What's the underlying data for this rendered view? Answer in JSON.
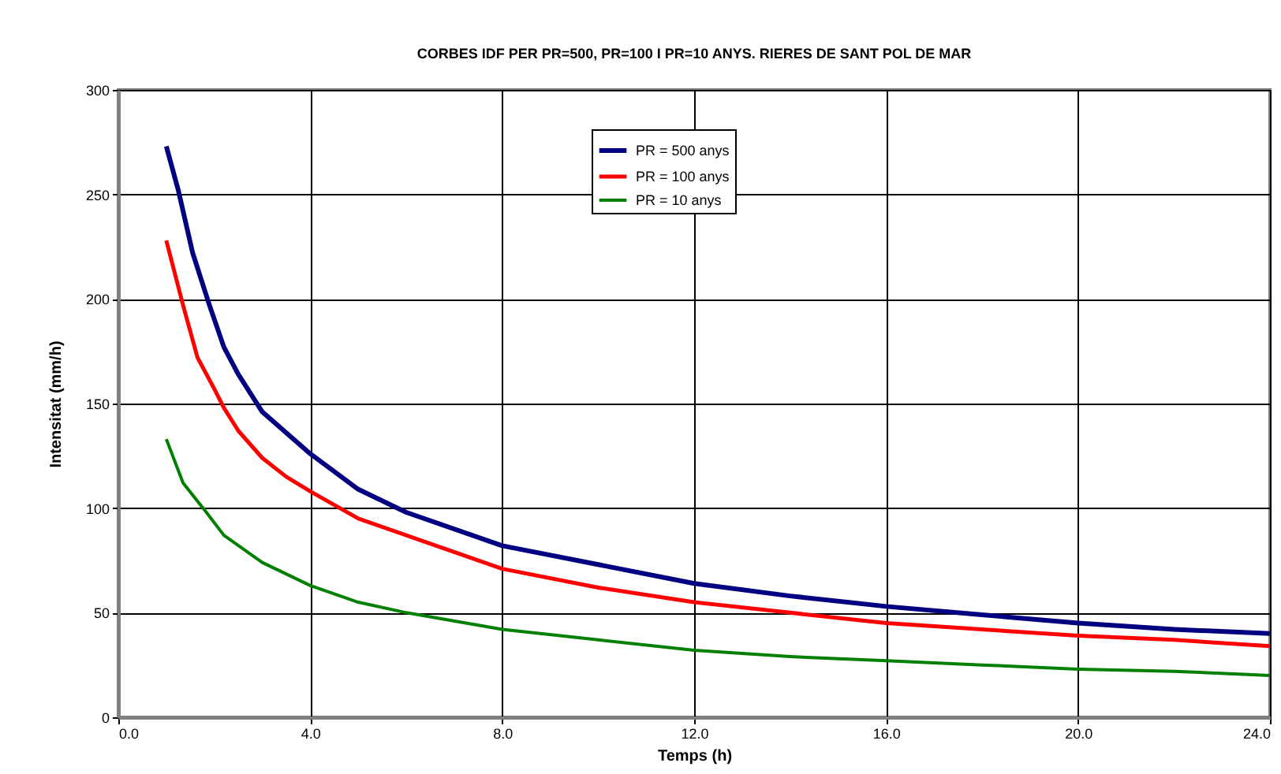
{
  "chart_data": {
    "type": "line",
    "title": "CORBES IDF PER PR=500, PR=100 I PR=10 ANYS. RIERES DE SANT POL DE MAR",
    "xlabel": "Temps (h)",
    "ylabel": "Intensitat (mm/h)",
    "xlim": [
      0,
      24
    ],
    "xticks": [
      {
        "value": 0,
        "label": "0.0"
      },
      {
        "value": 4,
        "label": "4.0"
      },
      {
        "value": 8,
        "label": "8.0"
      },
      {
        "value": 12,
        "label": "12.0"
      },
      {
        "value": 16,
        "label": "16.0"
      },
      {
        "value": 20,
        "label": "20.0"
      },
      {
        "value": 24,
        "label": "24.0"
      }
    ],
    "ylim": [
      0,
      300
    ],
    "yticks": [
      0,
      50,
      100,
      150,
      200,
      250,
      300
    ],
    "grid": true,
    "legend": "top",
    "line_style": "solid",
    "series": [
      {
        "name": "PR = 500 anys",
        "color": "#000080",
        "x": [
          1,
          1.25,
          1.55,
          1.9,
          2.2,
          2.5,
          3,
          4,
          5,
          6,
          8,
          10,
          12,
          14,
          16,
          18,
          20,
          22,
          24
        ],
        "values": [
          273,
          252,
          222,
          197,
          177,
          164,
          146,
          126,
          109,
          98,
          82,
          73,
          64,
          58,
          53,
          49,
          45,
          42,
          40
        ]
      },
      {
        "name": "PR = 100 anys",
        "color": "#ff0000",
        "x": [
          1,
          1.35,
          1.65,
          2,
          2.2,
          2.5,
          3,
          3.5,
          4,
          5,
          6,
          8,
          10,
          12,
          14,
          16,
          18,
          20,
          22,
          24
        ],
        "values": [
          228,
          197,
          172,
          157,
          148,
          137,
          124,
          115,
          108,
          95,
          87,
          71,
          62,
          55,
          50,
          45,
          42,
          39,
          37,
          34
        ]
      },
      {
        "name": "PR = 10 anys",
        "color": "#008000",
        "x": [
          1,
          1.35,
          1.8,
          2.2,
          3,
          4,
          5,
          6,
          8,
          10,
          12,
          14,
          16,
          18,
          20,
          22,
          24
        ],
        "values": [
          133,
          112,
          99,
          87,
          74,
          63,
          55,
          50,
          42,
          37,
          32,
          29,
          27,
          25,
          23,
          22,
          20
        ]
      }
    ]
  }
}
